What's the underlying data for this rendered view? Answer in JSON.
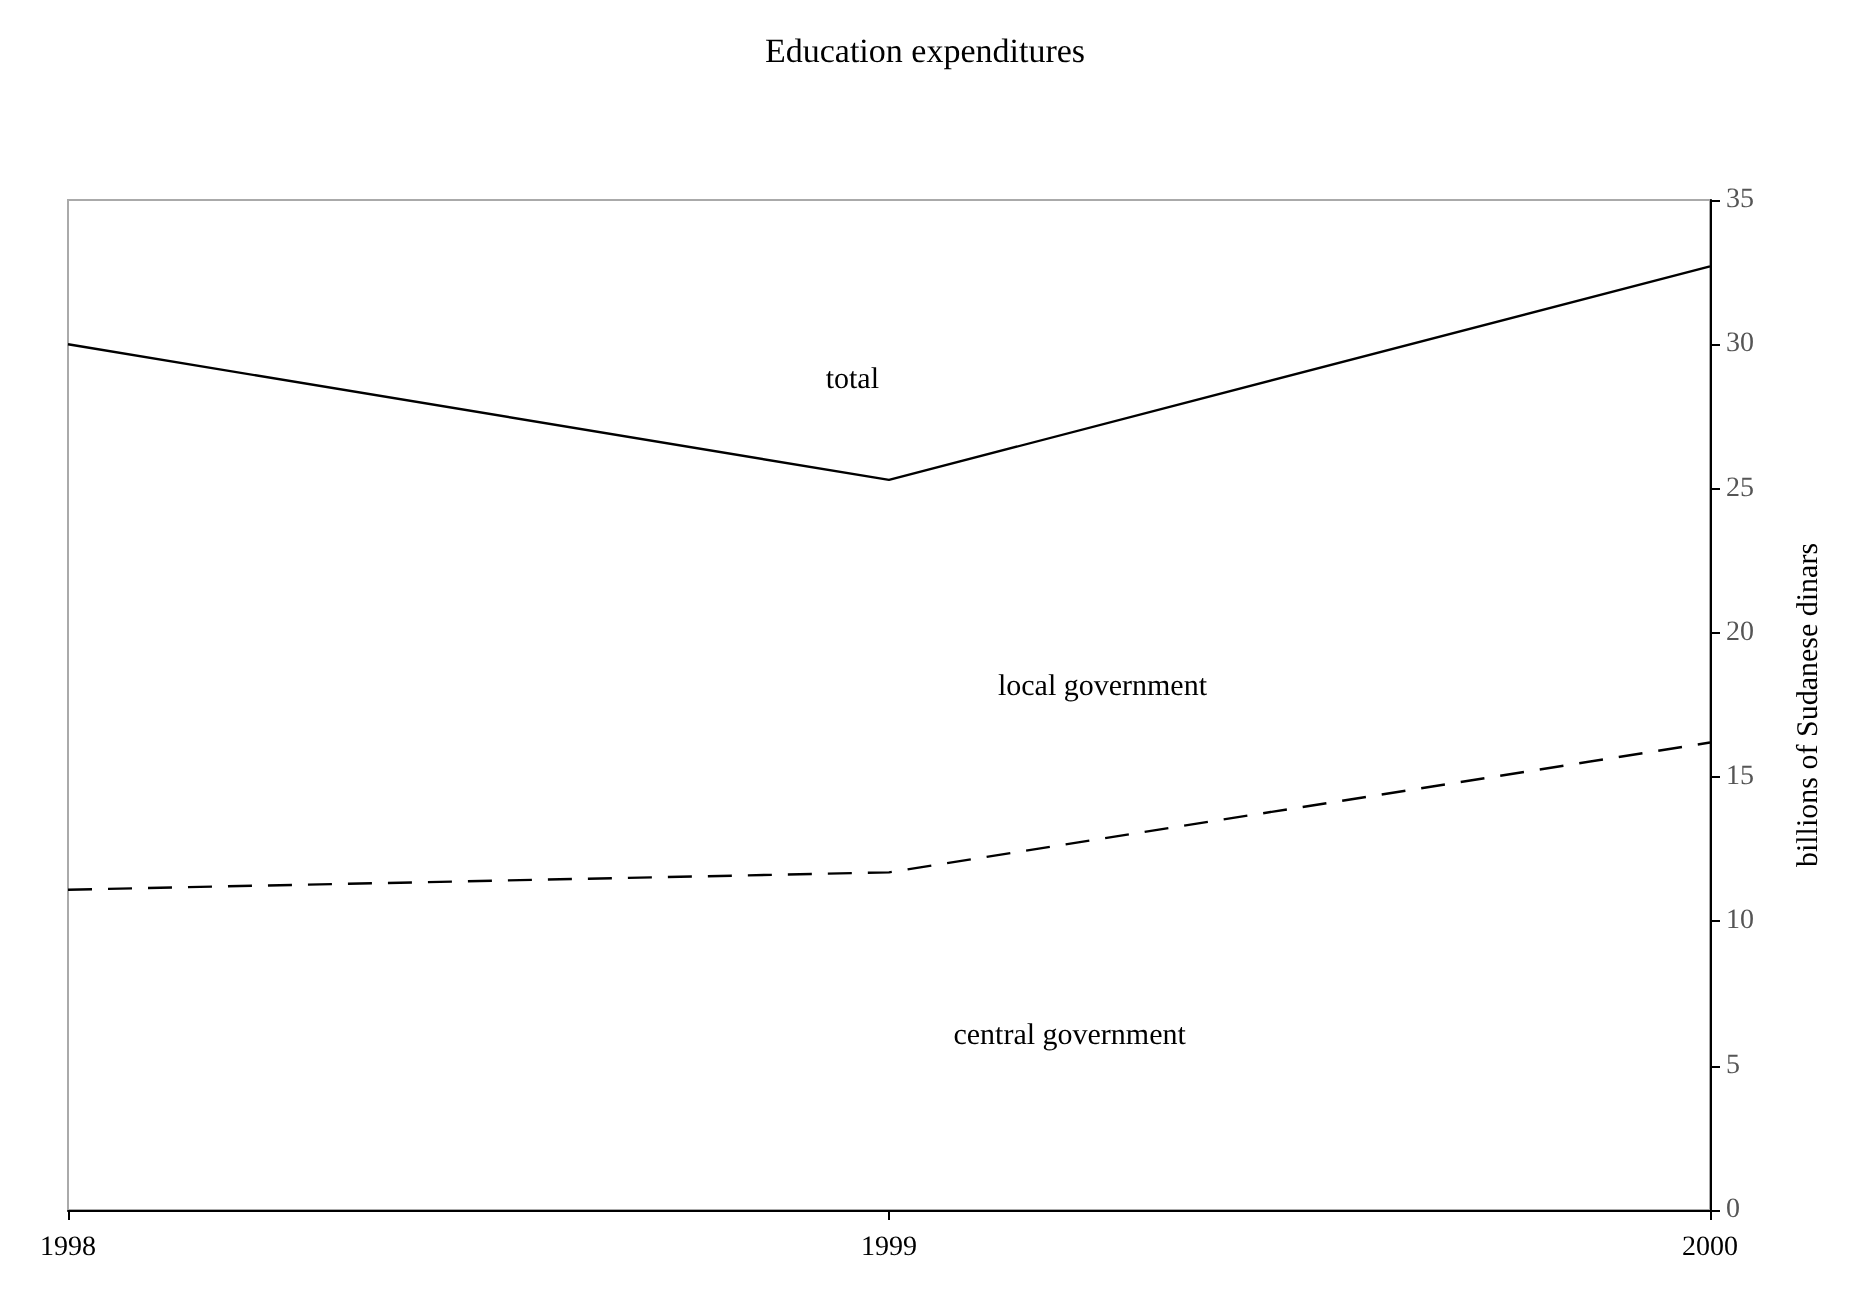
{
  "chart_data": {
    "type": "line",
    "title": "Education expenditures",
    "ylabel": "billions of Sudanese dinars",
    "x": [
      1998,
      1999,
      2000
    ],
    "series": [
      {
        "name": "total",
        "color": "#000000",
        "values": [
          30.0,
          25.3,
          32.7
        ],
        "line_style": "solid"
      },
      {
        "color": "#000000",
        "values": [
          11.1,
          11.7,
          16.2
        ],
        "line_style": "dashed"
      }
    ],
    "annotations": [
      "local government",
      "central government"
    ],
    "xlim": [
      1998,
      2000
    ],
    "xticks": [
      1998,
      1999,
      2000
    ],
    "ylim": [
      0,
      35
    ],
    "yticks": [
      0,
      5,
      10,
      15,
      20,
      25,
      30,
      35
    ],
    "grid": false,
    "legend": false,
    "marker": "none"
  }
}
